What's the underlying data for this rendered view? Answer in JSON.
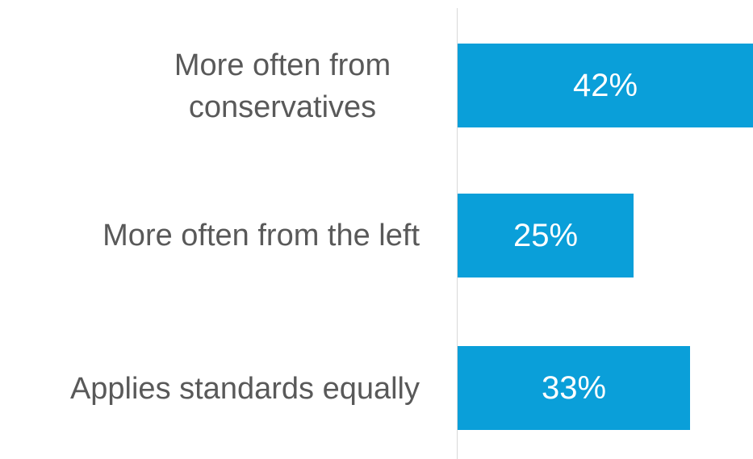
{
  "chart_data": {
    "type": "bar",
    "orientation": "horizontal",
    "categories": [
      "More often from\nconservatives",
      "More often from the left",
      "Applies standards equally"
    ],
    "values": [
      42,
      25,
      33
    ],
    "data_labels": [
      "42%",
      "25%",
      "33%"
    ],
    "unit": "%",
    "xlim": [
      0,
      42
    ],
    "grid": false,
    "legend": "none",
    "bar_color": "#0a9fd9"
  }
}
